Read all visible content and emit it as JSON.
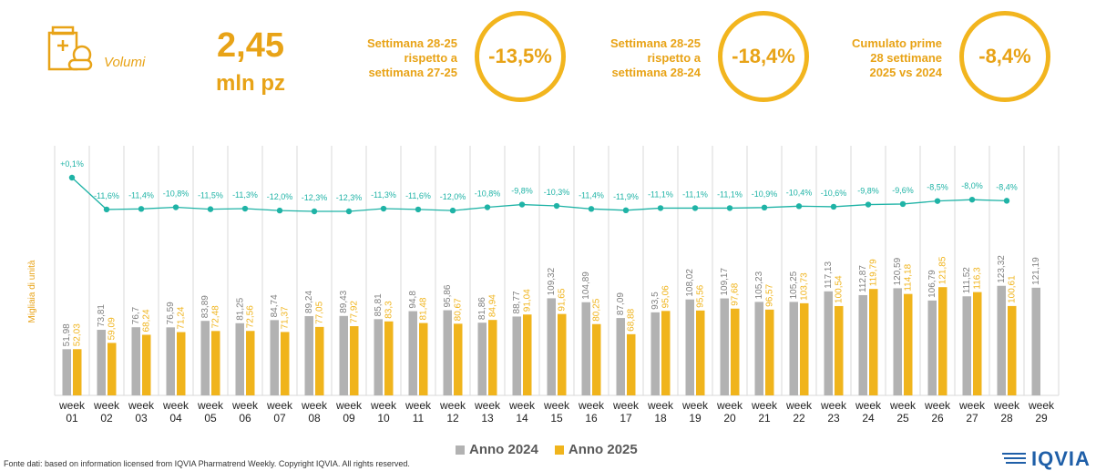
{
  "header": {
    "metric_label": "Volumi",
    "metric_value": "2,45",
    "metric_unit": "mln pz",
    "comparisons": [
      {
        "lines": [
          "Settimana 28-25",
          "rispetto a",
          "settimana 27-25"
        ],
        "value": "-13,5%"
      },
      {
        "lines": [
          "Settimana 28-25",
          "rispetto a",
          "settimana 28-24"
        ],
        "value": "-18,4%"
      },
      {
        "lines": [
          "Cumulato prime",
          "28 settimane",
          "2025 vs 2024"
        ],
        "value": "-8,4%"
      }
    ]
  },
  "colors": {
    "accent": "#e8a317",
    "bar_2024": "#b2b2b2",
    "bar_2025": "#f0b41c",
    "line": "#1fb3a6",
    "grid": "#d9d9d9"
  },
  "chart_data": {
    "type": "bar",
    "ylabel": "Migliaia di unità",
    "ylim": [
      0,
      160
    ],
    "categories": [
      "week 01",
      "week 02",
      "week 03",
      "week 04",
      "week 05",
      "week 06",
      "week 07",
      "week 08",
      "week 09",
      "week 10",
      "week 11",
      "week 12",
      "week 13",
      "week 14",
      "week 15",
      "week 16",
      "week 17",
      "week 18",
      "week 19",
      "week 20",
      "week 21",
      "week 22",
      "week 23",
      "week 24",
      "week 25",
      "week 26",
      "week 27",
      "week 28",
      "week 29"
    ],
    "series": [
      {
        "name": "Anno 2024",
        "values": [
          51.98,
          73.81,
          76.7,
          76.59,
          83.89,
          81.25,
          84.74,
          89.24,
          89.43,
          85.81,
          94.8,
          95.86,
          81.86,
          88.77,
          109.32,
          104.89,
          87.09,
          93.5,
          108.02,
          109.17,
          105.23,
          105.25,
          117.13,
          112.87,
          120.59,
          106.79,
          111.52,
          123.32,
          121.19
        ],
        "labels": [
          "51,98",
          "73,81",
          "76,7",
          "76,59",
          "83,89",
          "81,25",
          "84,74",
          "89,24",
          "89,43",
          "85,81",
          "94,8",
          "95,86",
          "81,86",
          "88,77",
          "109,32",
          "104,89",
          "87,09",
          "93,5",
          "108,02",
          "109,17",
          "105,23",
          "105,25",
          "117,13",
          "112,87",
          "120,59",
          "106,79",
          "111,52",
          "123,32",
          "121,19"
        ]
      },
      {
        "name": "Anno 2025",
        "values": [
          52.03,
          59.09,
          68.24,
          71.24,
          72.48,
          72.56,
          71.37,
          77.05,
          77.92,
          83.3,
          81.48,
          80.67,
          84.94,
          91.04,
          91.65,
          80.25,
          68.88,
          95.06,
          95.56,
          97.68,
          96.57,
          103.73,
          100.54,
          119.79,
          114.18,
          121.85,
          116.3,
          100.61,
          null
        ],
        "labels": [
          "52,03",
          "59,09",
          "68,24",
          "71,24",
          "72,48",
          "72,56",
          "71,37",
          "77,05",
          "77,92",
          "83,3",
          "81,48",
          "80,67",
          "84,94",
          "91,04",
          "91,65",
          "80,25",
          "68,88",
          "95,06",
          "95,56",
          "97,68",
          "96,57",
          "103,73",
          "100,54",
          "119,79",
          "114,18",
          "121,85",
          "116,3",
          "100,61",
          ""
        ]
      }
    ],
    "variation": {
      "values": [
        0.1,
        -11.6,
        -11.4,
        -10.8,
        -11.5,
        -11.3,
        -12.0,
        -12.3,
        -12.3,
        -11.3,
        -11.6,
        -12.0,
        -10.8,
        -9.8,
        -10.3,
        -11.4,
        -11.9,
        -11.1,
        -11.1,
        -11.1,
        -10.9,
        -10.4,
        -10.6,
        -9.8,
        -9.6,
        -8.5,
        -8.0,
        -8.4
      ],
      "labels": [
        "+0,1%",
        "-11,6%",
        "-11,4%",
        "-10,8%",
        "-11,5%",
        "-11,3%",
        "-12,0%",
        "-12,3%",
        "-12,3%",
        "-11,3%",
        "-11,6%",
        "-12,0%",
        "-10,8%",
        "-9,8%",
        "-10,3%",
        "-11,4%",
        "-11,9%",
        "-11,1%",
        "-11,1%",
        "-11,1%",
        "-10,9%",
        "-10,4%",
        "-10,6%",
        "-9,8%",
        "-9,6%",
        "-8,5%",
        "-8,0%",
        "-8,4%"
      ]
    },
    "legend": [
      "Anno 2024",
      "Anno 2025"
    ],
    "grid": true
  },
  "footer": {
    "source": "Fonte dati: based on information licensed from IQVIA Pharmatrend Weekly. Copyright IQVIA. All rights reserved.",
    "logo": "IQVIA"
  }
}
